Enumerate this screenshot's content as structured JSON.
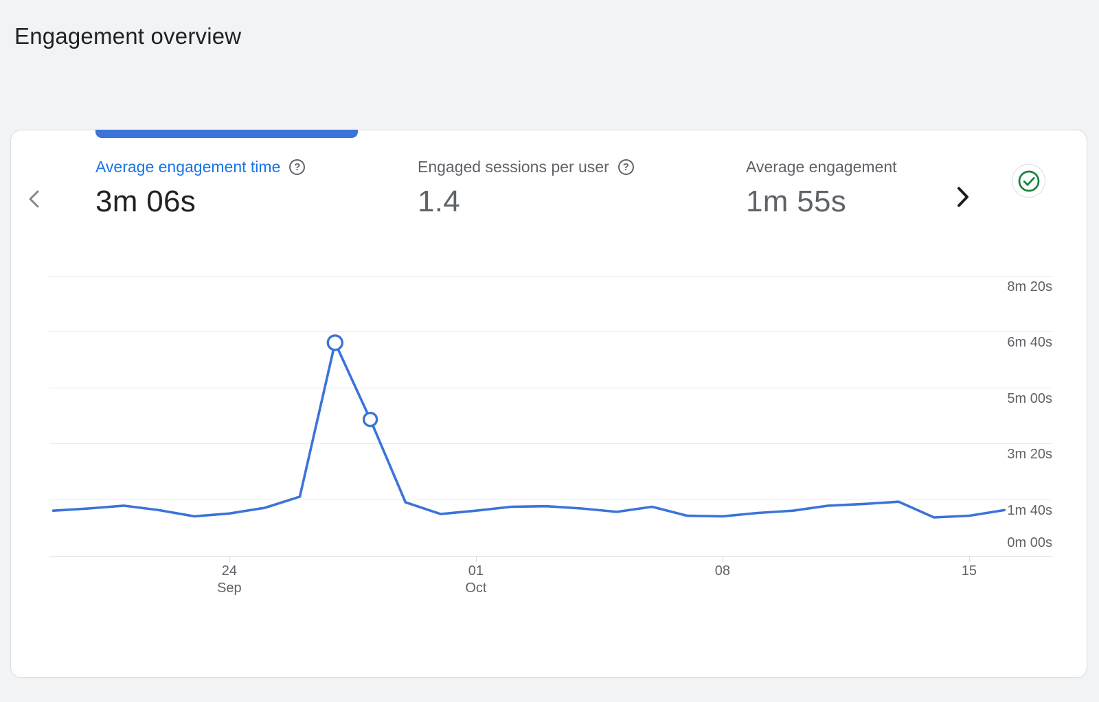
{
  "title": "Engagement overview",
  "colors": {
    "page_bg": "#f1f3f4",
    "card_border": "#dadce0",
    "accent_blue": "#3b73d9",
    "active_tab_text": "#1a73e8",
    "value_text_dark": "#202124",
    "muted_text": "#5f6368",
    "success_green": "#188038",
    "grid_line": "#e8eaed",
    "axis_line": "#dadce0"
  },
  "icons": {
    "help": "?",
    "chevron_left": "‹",
    "chevron_right": "›",
    "check": "✓"
  },
  "card": {
    "tabs": [
      {
        "label": "Average engagement time",
        "value": "3m 06s",
        "has_help_icon": true,
        "active": true
      },
      {
        "label": "Engaged sessions per user",
        "value": "1.4",
        "has_help_icon": true,
        "active": false
      },
      {
        "label": "Average engagement",
        "value": "1m 55s",
        "has_help_icon": false,
        "active": false
      }
    ]
  },
  "chart_data": {
    "type": "line",
    "title": "Average engagement time over time",
    "x_unit": "day",
    "grid": "horizontal",
    "legend": "none",
    "ylim_seconds": [
      0,
      500
    ],
    "y_ticks": [
      {
        "seconds": 0,
        "label": "0m 00s"
      },
      {
        "seconds": 100,
        "label": "1m 40s"
      },
      {
        "seconds": 200,
        "label": "3m 20s"
      },
      {
        "seconds": 300,
        "label": "5m 00s"
      },
      {
        "seconds": 400,
        "label": "6m 40s"
      },
      {
        "seconds": 500,
        "label": "8m 20s"
      }
    ],
    "x": [
      "Sep 19",
      "Sep 20",
      "Sep 21",
      "Sep 22",
      "Sep 23",
      "Sep 24",
      "Sep 25",
      "Sep 26",
      "Sep 27",
      "Sep 28",
      "Sep 29",
      "Sep 30",
      "Oct 1",
      "Oct 2",
      "Oct 3",
      "Oct 4",
      "Oct 5",
      "Oct 6",
      "Oct 7",
      "Oct 8",
      "Oct 9",
      "Oct 10",
      "Oct 11",
      "Oct 12",
      "Oct 13",
      "Oct 14",
      "Oct 15",
      "Oct 16"
    ],
    "x_ticks": [
      {
        "index": 5,
        "label": "24",
        "sublabel": "Sep"
      },
      {
        "index": 12,
        "label": "01",
        "sublabel": "Oct"
      },
      {
        "index": 19,
        "label": "08",
        "sublabel": ""
      },
      {
        "index": 26,
        "label": "15",
        "sublabel": ""
      }
    ],
    "series": [
      {
        "name": "Average engagement time",
        "color": "#3b73d9",
        "values_seconds": [
          80,
          84,
          89,
          81,
          70,
          75,
          85,
          105,
          380,
          243,
          95,
          74,
          80,
          87,
          88,
          84,
          78,
          87,
          71,
          70,
          76,
          80,
          89,
          92,
          96,
          68,
          71,
          81
        ]
      }
    ],
    "highlighted_points": [
      {
        "index": 8,
        "date": "Sep 27",
        "seconds": 380,
        "radius": 10.5
      },
      {
        "index": 9,
        "date": "Sep 28",
        "seconds": 243,
        "radius": 9.5
      }
    ]
  }
}
